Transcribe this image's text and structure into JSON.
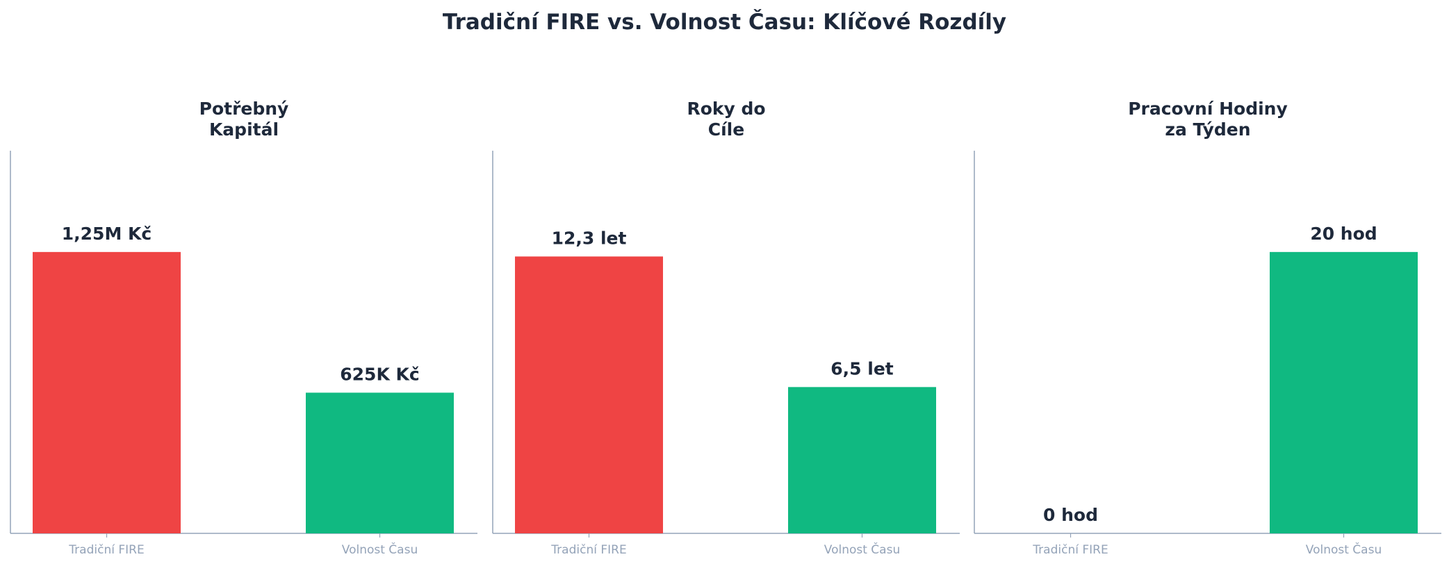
{
  "title": "Tradiční FIRE vs. Volnost Času: Klíčové Rozdíly",
  "colors": {
    "fire": "#ef4444",
    "volnost": "#10b981",
    "axis": "#94a3b8",
    "text": "#1e293b",
    "tick": "#94a3b8"
  },
  "chart_data": [
    {
      "type": "bar",
      "title": "Potřebný\nKapitál",
      "categories": [
        "Tradiční FIRE",
        "Volnost Času"
      ],
      "values": [
        1250000,
        625000
      ],
      "data_labels": [
        "1,25M Kč",
        "625K Kč"
      ],
      "ylim": [
        0,
        1700000
      ],
      "grid": false
    },
    {
      "type": "bar",
      "title": "Roky do\nCíle",
      "categories": [
        "Tradiční FIRE",
        "Volnost Času"
      ],
      "values": [
        12.3,
        6.5
      ],
      "data_labels": [
        "12,3 let",
        "6,5 let"
      ],
      "ylim": [
        0,
        17
      ],
      "grid": false
    },
    {
      "type": "bar",
      "title": "Pracovní Hodiny\nza Týden",
      "categories": [
        "Tradiční FIRE",
        "Volnost Času"
      ],
      "values": [
        0,
        20
      ],
      "data_labels": [
        "0 hod",
        "20 hod"
      ],
      "ylim": [
        0,
        27.2
      ],
      "grid": false
    }
  ]
}
